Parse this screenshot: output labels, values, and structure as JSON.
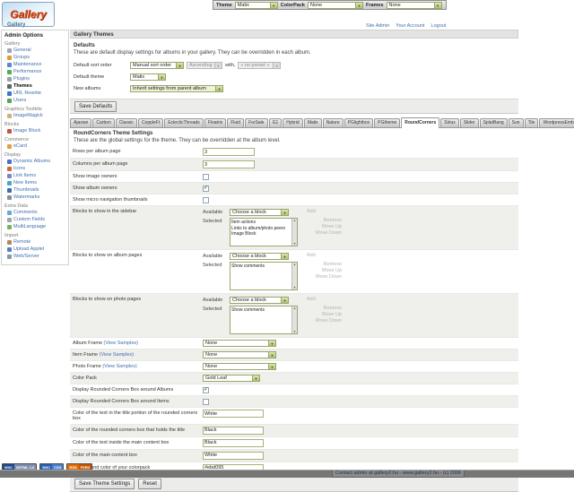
{
  "colors": {
    "accent_olive": "#98a66b",
    "link_blue": "#3f6fae",
    "footer_bg": "#767674",
    "logo_red": "#e04a12"
  },
  "top_bar": {
    "theme_label": "Theme",
    "theme_value": "Matix",
    "colorpack_label": "ColorPack",
    "colorpack_value": "None",
    "frames_label": "Frames",
    "frames_value": "None"
  },
  "header": {
    "logo": "Gallery",
    "breadcrumb": "Gallery",
    "links": [
      "Site Admin",
      "Your Account",
      "Logout"
    ]
  },
  "page": {
    "title": "Gallery Themes"
  },
  "sidebar": {
    "title": "Admin Options",
    "sections": [
      {
        "label": "Gallery",
        "items": [
          {
            "label": "General",
            "icon": "general-icon"
          },
          {
            "label": "Groups",
            "icon": "groups-icon"
          },
          {
            "label": "Maintenance",
            "icon": "maintenance-icon"
          },
          {
            "label": "Performance",
            "icon": "performance-icon"
          },
          {
            "label": "Plugins",
            "icon": "plugins-icon"
          },
          {
            "label": "Themes",
            "icon": "themes-icon",
            "current": true
          },
          {
            "label": "URL Rewrite",
            "icon": "url-rewrite-icon"
          },
          {
            "label": "Users",
            "icon": "users-icon"
          }
        ]
      },
      {
        "label": "Graphics Toolkits",
        "items": [
          {
            "label": "ImageMagick",
            "icon": "imagemagick-icon"
          }
        ]
      },
      {
        "label": "Blocks",
        "items": [
          {
            "label": "Image Block",
            "icon": "image-block-icon"
          }
        ]
      },
      {
        "label": "Commerce",
        "items": [
          {
            "label": "eCard",
            "icon": "ecard-icon"
          }
        ]
      },
      {
        "label": "Display",
        "items": [
          {
            "label": "Dynamic Albums",
            "icon": "dynamic-albums-icon"
          },
          {
            "label": "Icons",
            "icon": "icons-icon"
          },
          {
            "label": "Link Items",
            "icon": "link-items-icon"
          },
          {
            "label": "New Items",
            "icon": "new-items-icon"
          },
          {
            "label": "Thumbnails",
            "icon": "thumbnails-icon"
          },
          {
            "label": "Watermarks",
            "icon": "watermarks-icon"
          }
        ]
      },
      {
        "label": "Extra Data",
        "items": [
          {
            "label": "Comments",
            "icon": "comments-icon"
          },
          {
            "label": "Custom Fields",
            "icon": "custom-fields-icon"
          },
          {
            "label": "MultiLanguage",
            "icon": "multilanguage-icon"
          }
        ]
      },
      {
        "label": "Import",
        "items": [
          {
            "label": "Remote",
            "icon": "remote-icon"
          },
          {
            "label": "Upload Applet",
            "icon": "upload-applet-icon"
          },
          {
            "label": "Web/Server",
            "icon": "web-server-icon"
          }
        ]
      }
    ]
  },
  "defaults": {
    "title": "Defaults",
    "description": "These are default display settings for albums in your gallery. They can be overridden in each album.",
    "sort_label": "Default sort order",
    "sort_value": "Manual sort order",
    "sort_dir_value": "Ascending",
    "sort_with": "with,",
    "sort_preset_value": "« no preset »",
    "theme_label": "Default theme",
    "theme_value": "Matix",
    "albums_label": "New albums",
    "albums_value": "Inherit settings from parent album",
    "save_label": "Save Defaults"
  },
  "tabs": {
    "active": "RoundCorners",
    "items": [
      "Ajaxian",
      "Carbon",
      "Classic",
      "CoppleFt",
      "EclecticThreads",
      "Floatrix",
      "Fluid",
      "ForSale",
      "G1",
      "Hybrid",
      "Matix",
      "Nature",
      "PGlightbox",
      "PGtheme",
      "RoundCorners",
      "Siriux",
      "Slider",
      "SplatBang",
      "Sun",
      "Tile",
      "WordpressEmbedded"
    ]
  },
  "theme_settings": {
    "title": "RoundCorners Theme Settings",
    "description": "These are the global settings for the theme. They can be overridden at the album level.",
    "blocks_labels": {
      "available": "Available",
      "selected": "Selected",
      "choose": "Choose a block",
      "add": "Add",
      "remove": "Remove",
      "move_up": "Move Up",
      "move_down": "Move Down"
    },
    "rows": [
      {
        "label": "Rows per album page",
        "type": "text",
        "value": "3",
        "width": 58
      },
      {
        "label": "Columns per album page",
        "type": "text",
        "value": "3",
        "width": 58
      },
      {
        "label": "Show image owners",
        "type": "checkbox",
        "checked": false
      },
      {
        "label": "Show album owners",
        "type": "checkbox",
        "checked": true
      },
      {
        "label": "Show micro navigation thumbnails",
        "type": "checkbox",
        "checked": false
      },
      {
        "label": "Blocks to show in the sidebar",
        "type": "blocks",
        "selected_items": [
          "Item actions",
          "Links to album/photo peers",
          "Image Block"
        ]
      },
      {
        "label": "Blocks to show on album pages",
        "type": "blocks",
        "selected_items": [
          "Show comments"
        ]
      },
      {
        "label": "Blocks to show on photo pages",
        "type": "blocks",
        "selected_items": [
          "Show comments"
        ]
      },
      {
        "label": "Album Frame",
        "link_label": "(View Samples)",
        "type": "select",
        "value": "None",
        "width": 82
      },
      {
        "label": "Item Frame",
        "link_label": "(View Samples)",
        "type": "select",
        "value": "None",
        "width": 82
      },
      {
        "label": "Photo Frame",
        "link_label": "(View Samples)",
        "type": "select",
        "value": "None",
        "width": 82
      },
      {
        "label": "Color Pack",
        "type": "select",
        "value": "Gold Leaf",
        "width": 64
      },
      {
        "label": "Display Rounded Corners Box around Albums",
        "type": "checkbox",
        "checked": true
      },
      {
        "label": "Display Rounded Corners Box around Items",
        "type": "checkbox",
        "checked": false
      },
      {
        "label": "Color of the text in the title portion of the rounded corners box",
        "type": "text",
        "value": "White",
        "width": 68
      },
      {
        "label": "Color of the rounded corners box that holds the title",
        "type": "text",
        "value": "Black",
        "width": 68
      },
      {
        "label": "Color of the text inside the main content box",
        "type": "text",
        "value": "Black",
        "width": 68
      },
      {
        "label": "Color of the main content box",
        "type": "text",
        "value": "White",
        "width": 68
      },
      {
        "label": "Background color of your colorpack",
        "type": "text",
        "value": "#ebd095",
        "width": 68
      }
    ],
    "save_label": "Save Theme Settings",
    "reset_label": "Reset"
  },
  "badges": [
    {
      "name": "xhtml-badge",
      "left": "W3C",
      "right": "XHTML 1.0",
      "left_color": "#1d4a8f",
      "right_color": "#7f8faf"
    },
    {
      "name": "css-badge",
      "left": "W3C",
      "right": "CSS",
      "left_color": "#2a5fb0",
      "right_color": "#4a7fd0"
    },
    {
      "name": "rss-badge",
      "left": "RSS",
      "right": "FEED",
      "left_color": "#e56a00",
      "right_color": "#c65500"
    }
  ],
  "footer": {
    "text": "Contact admin at gallery2.hu - www.gallery2.hu - (c) 2006"
  }
}
